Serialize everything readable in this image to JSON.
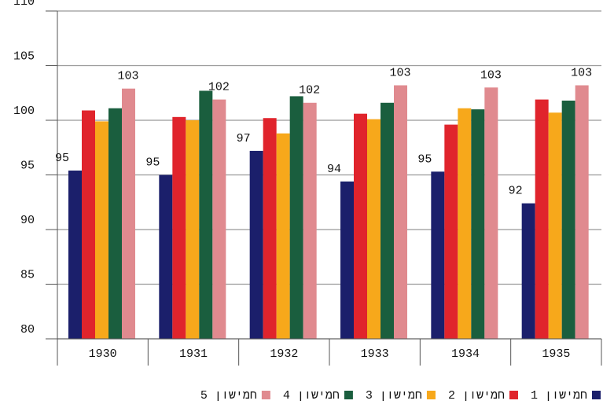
{
  "chart_data": {
    "type": "bar",
    "categories": [
      "1930",
      "1931",
      "1932",
      "1933",
      "1934",
      "1935"
    ],
    "series": [
      {
        "name": "חמישון 1",
        "color": "#1b1f6b",
        "values": [
          95.4,
          95.0,
          97.2,
          94.4,
          95.3,
          92.4
        ],
        "value_labels": [
          "95",
          "95",
          "97",
          "94",
          "95",
          "92"
        ]
      },
      {
        "name": "חמישון 2",
        "color": "#e0242c",
        "values": [
          100.9,
          100.3,
          100.2,
          100.6,
          99.6,
          101.9
        ]
      },
      {
        "name": "חמישון 3",
        "color": "#f7a81b",
        "values": [
          99.9,
          100.0,
          98.8,
          100.1,
          101.1,
          100.7
        ]
      },
      {
        "name": "חמישון 4",
        "color": "#1a5e3e",
        "values": [
          101.1,
          102.7,
          102.2,
          101.6,
          101.0,
          101.8
        ]
      },
      {
        "name": "חמישון 5",
        "color": "#e08a8f",
        "values": [
          102.9,
          101.9,
          101.6,
          103.2,
          103.0,
          103.2
        ],
        "value_labels": [
          "103",
          "102",
          "102",
          "103",
          "103",
          "103"
        ]
      }
    ],
    "ylim": [
      80,
      110
    ],
    "yticks": [
      80,
      85,
      90,
      95,
      100,
      105,
      110
    ],
    "grid": true,
    "legend": "bottom"
  }
}
